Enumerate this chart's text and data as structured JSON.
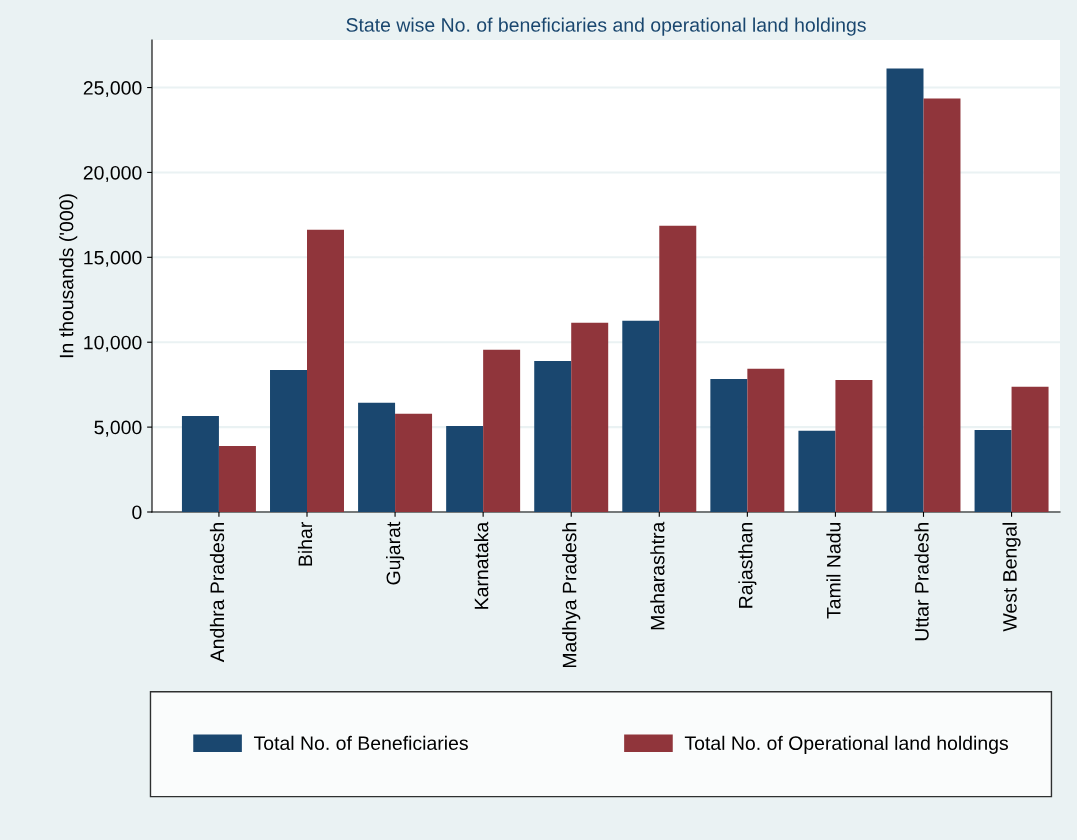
{
  "chart_data": {
    "type": "bar",
    "title": "State wise No. of beneficiaries and operational land holdings",
    "ylabel": "In thousands ('000)",
    "categories": [
      "Andhra Pradesh",
      "Bihar",
      "Gujarat",
      "Karnataka",
      "Madhya Pradesh",
      "Maharashtra",
      "Rajasthan",
      "Tamil Nadu",
      "Uttar Pradesh",
      "West Bengal"
    ],
    "series": [
      {
        "name": "Total No. of Beneficiaries",
        "color": "#1a476f",
        "values": [
          5660,
          8370,
          6430,
          5070,
          8900,
          11260,
          7840,
          4780,
          26120,
          4830
        ]
      },
      {
        "name": "Total No. of Operational land holdings",
        "color": "#90353b",
        "values": [
          3890,
          16630,
          5780,
          9550,
          11140,
          16860,
          8430,
          7780,
          24350,
          7370
        ]
      }
    ],
    "ylim": [
      0,
      27800
    ],
    "yticks": [
      0,
      {
        "value": 5000,
        "label": "5,000"
      },
      {
        "value": 10000,
        "label": "10,000"
      },
      {
        "value": 15000,
        "label": "15,000"
      },
      {
        "value": 20000,
        "label": "20,000"
      },
      {
        "value": 25000,
        "label": "25,000"
      }
    ],
    "grid": "y",
    "legend": "bottom"
  }
}
